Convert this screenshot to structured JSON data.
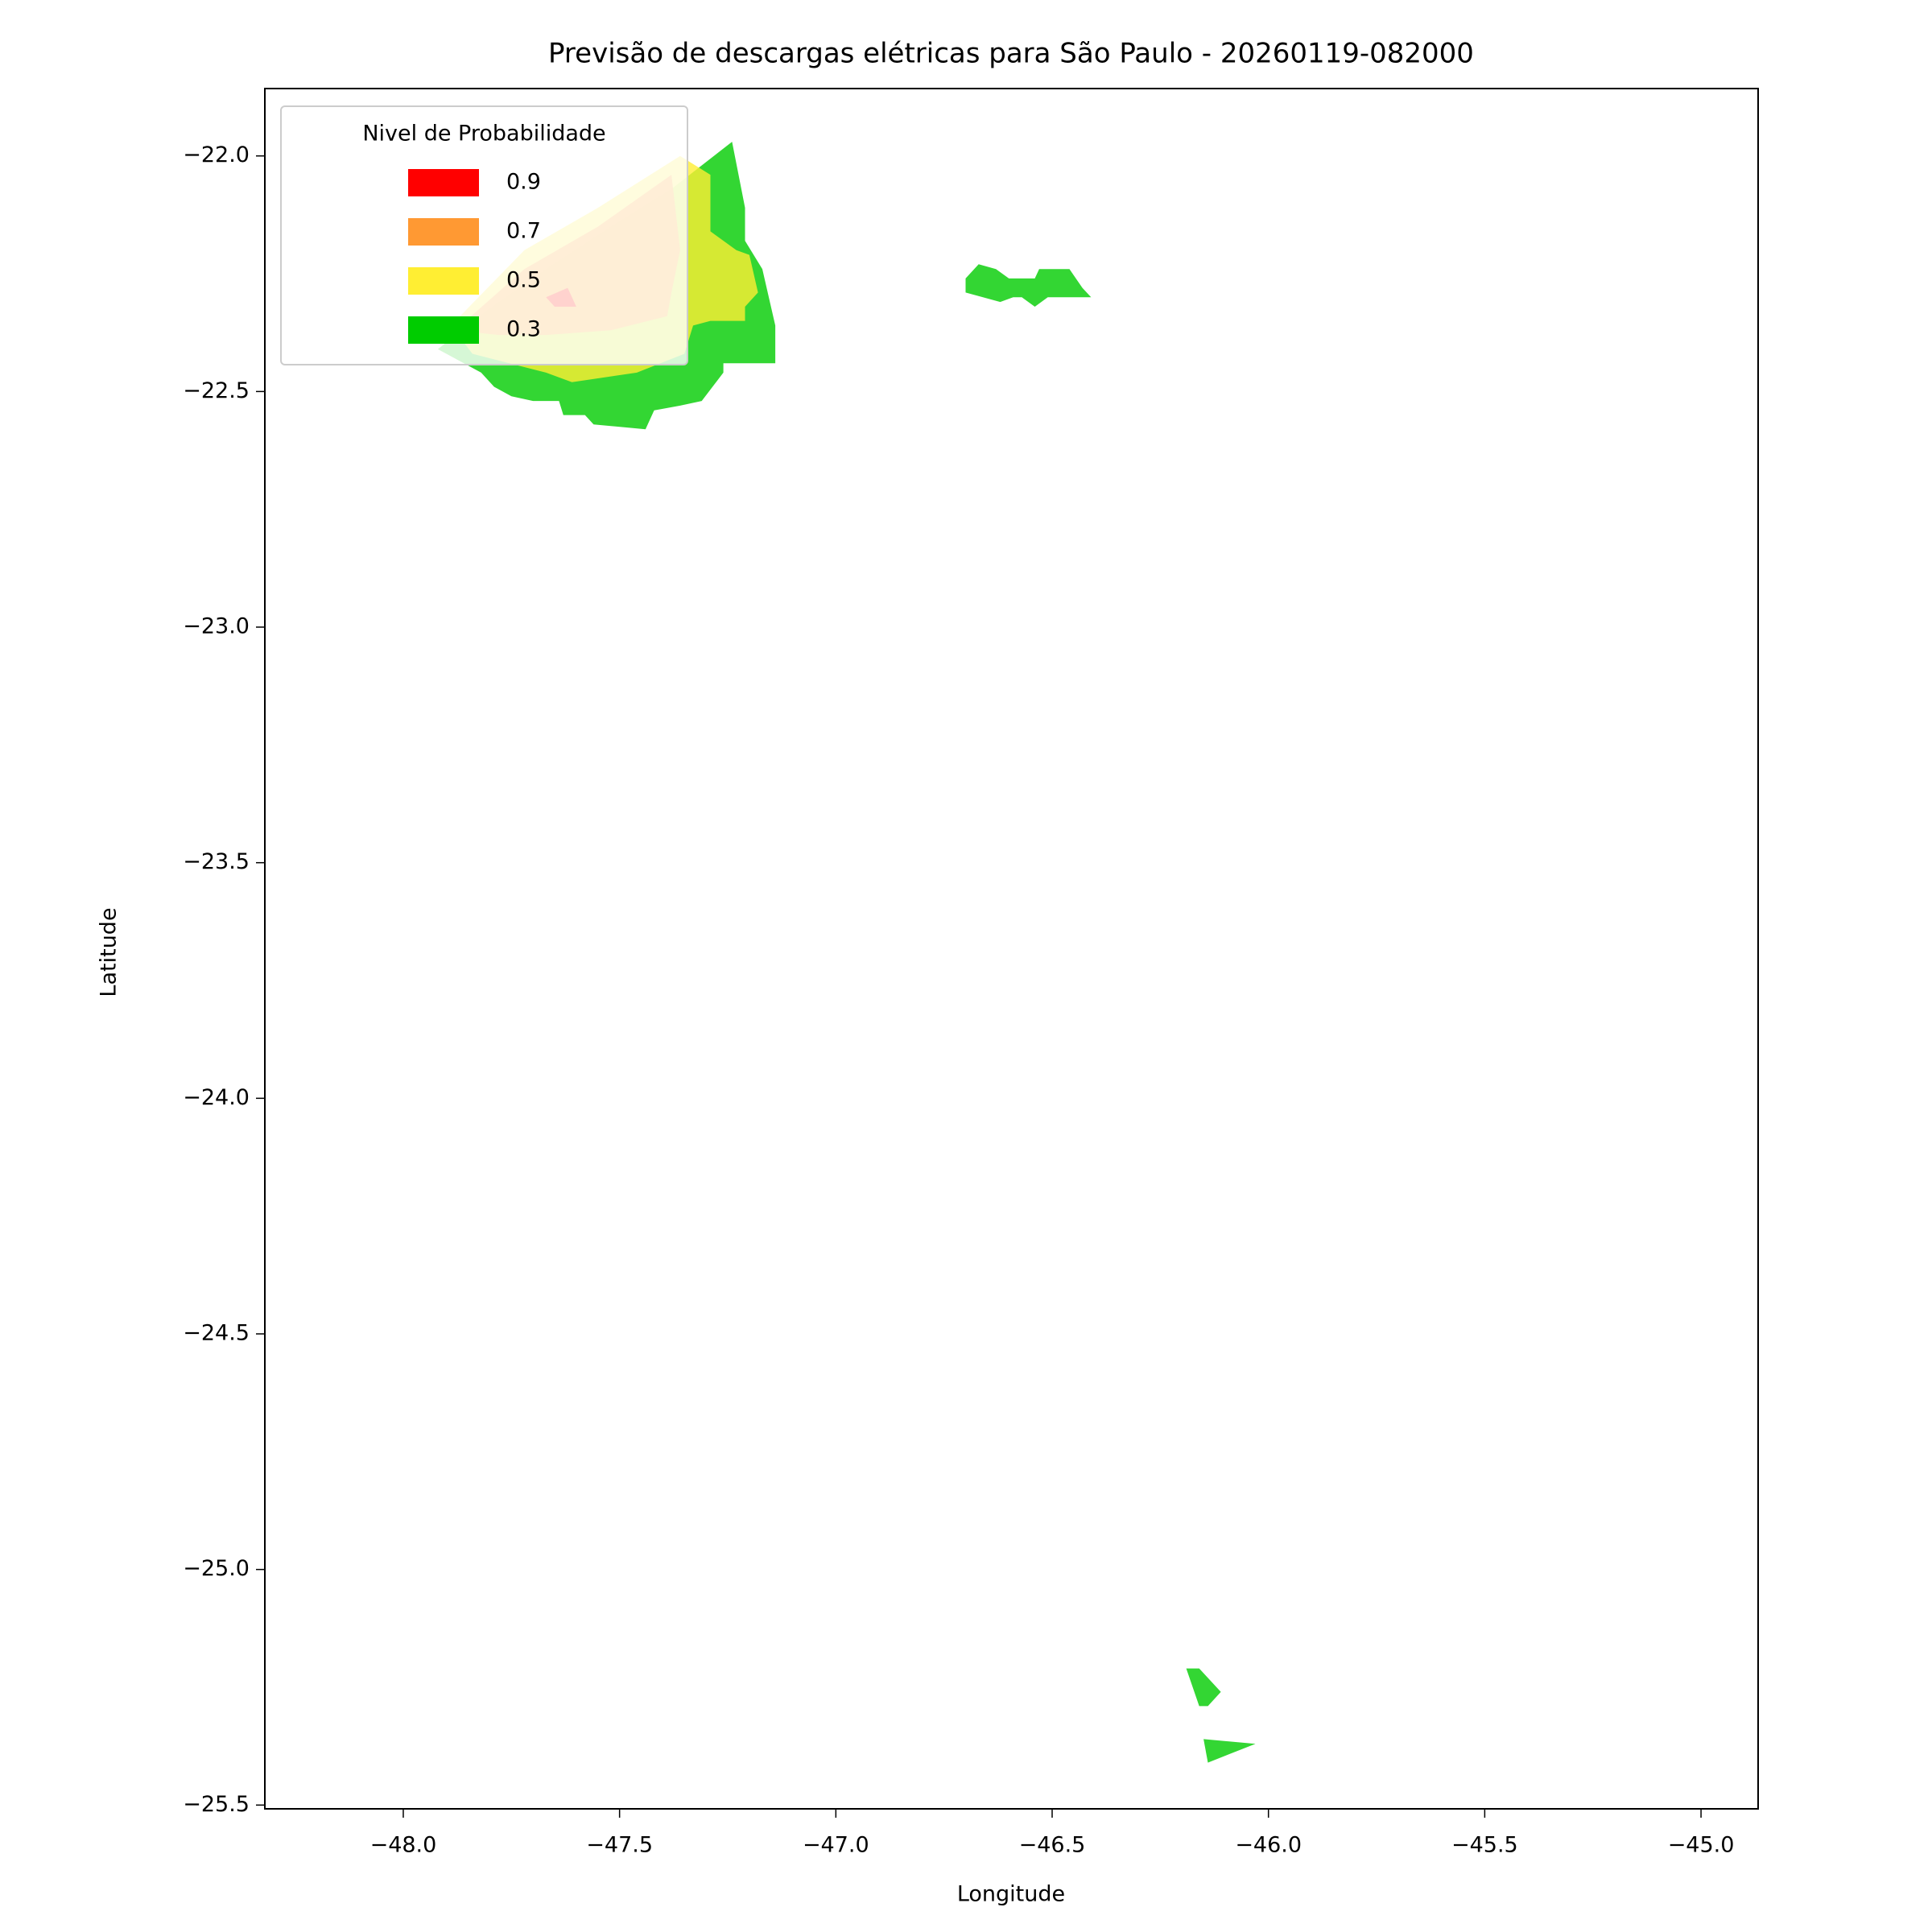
{
  "chart_data": {
    "type": "contour-map",
    "title": "Previsão de descargas elétricas para São Paulo - 20260119-082000",
    "x_label": "Longitude",
    "y_label": "Latitude",
    "xlim": [
      -48.32,
      -44.868
    ],
    "ylim": [
      -25.508,
      -21.857
    ],
    "xticks": [
      {
        "value": -48.0,
        "label": "−48.0"
      },
      {
        "value": -47.5,
        "label": "−47.5"
      },
      {
        "value": -47.0,
        "label": "−47.0"
      },
      {
        "value": -46.5,
        "label": "−46.5"
      },
      {
        "value": -46.0,
        "label": "−46.0"
      },
      {
        "value": -45.5,
        "label": "−45.5"
      },
      {
        "value": -45.0,
        "label": "−45.0"
      }
    ],
    "yticks": [
      {
        "value": -22.0,
        "label": "−22.0"
      },
      {
        "value": -22.5,
        "label": "−22.5"
      },
      {
        "value": -23.0,
        "label": "−23.0"
      },
      {
        "value": -23.5,
        "label": "−23.5"
      },
      {
        "value": -24.0,
        "label": "−24.0"
      },
      {
        "value": -24.5,
        "label": "−24.5"
      },
      {
        "value": -25.0,
        "label": "−25.0"
      },
      {
        "value": -25.5,
        "label": "−25.5"
      }
    ],
    "legend_title": "Nivel de Probabilidade",
    "legend": "upper left",
    "alpha": 0.8,
    "series": [
      {
        "name": "0.9",
        "color": "#ff0000",
        "polygons": [
          [
            [
              -47.67,
              -22.3
            ],
            [
              -47.62,
              -22.28
            ],
            [
              -47.6,
              -22.32
            ],
            [
              -47.65,
              -22.32
            ]
          ]
        ]
      },
      {
        "name": "0.7",
        "color": "#ff9933",
        "polygons": [
          [
            [
              -47.88,
              -22.37
            ],
            [
              -47.72,
              -22.24
            ],
            [
              -47.55,
              -22.15
            ],
            [
              -47.38,
              -22.04
            ],
            [
              -47.36,
              -22.2
            ],
            [
              -47.38,
              -22.29
            ],
            [
              -47.39,
              -22.34
            ],
            [
              -47.52,
              -22.37
            ],
            [
              -47.67,
              -22.38
            ],
            [
              -47.78,
              -22.38
            ]
          ]
        ]
      },
      {
        "name": "0.5",
        "color": "#ffee33",
        "polygons": [
          [
            [
              -47.84,
              -22.42
            ],
            [
              -47.67,
              -22.46
            ],
            [
              -47.61,
              -22.48
            ],
            [
              -47.46,
              -22.46
            ],
            [
              -47.35,
              -22.42
            ],
            [
              -47.33,
              -22.36
            ],
            [
              -47.29,
              -22.35
            ],
            [
              -47.21,
              -22.35
            ],
            [
              -47.21,
              -22.32
            ],
            [
              -47.18,
              -22.29
            ],
            [
              -47.2,
              -22.21
            ],
            [
              -47.23,
              -22.2
            ],
            [
              -47.29,
              -22.16
            ],
            [
              -47.29,
              -22.04
            ],
            [
              -47.36,
              -22.0
            ],
            [
              -47.55,
              -22.11
            ],
            [
              -47.72,
              -22.2
            ],
            [
              -47.89,
              -22.36
            ]
          ]
        ]
      },
      {
        "name": "0.3",
        "color": "#00cc00",
        "polygons": [
          [
            [
              -47.92,
              -22.41
            ],
            [
              -47.81,
              -22.33
            ],
            [
              -47.67,
              -22.24
            ],
            [
              -47.52,
              -22.15
            ],
            [
              -47.38,
              -22.07
            ],
            [
              -47.24,
              -21.97
            ],
            [
              -47.21,
              -22.11
            ],
            [
              -47.21,
              -22.18
            ],
            [
              -47.17,
              -22.24
            ],
            [
              -47.14,
              -22.36
            ],
            [
              -47.14,
              -22.44
            ],
            [
              -47.26,
              -22.44
            ],
            [
              -47.26,
              -22.46
            ],
            [
              -47.31,
              -22.52
            ],
            [
              -47.36,
              -22.53
            ],
            [
              -47.42,
              -22.54
            ],
            [
              -47.44,
              -22.58
            ],
            [
              -47.56,
              -22.57
            ],
            [
              -47.58,
              -22.55
            ],
            [
              -47.63,
              -22.55
            ],
            [
              -47.64,
              -22.52
            ],
            [
              -47.7,
              -22.52
            ],
            [
              -47.75,
              -22.51
            ],
            [
              -47.79,
              -22.49
            ],
            [
              -47.82,
              -22.46
            ]
          ],
          [
            [
              -46.7,
              -22.26
            ],
            [
              -46.67,
              -22.23
            ],
            [
              -46.63,
              -22.24
            ],
            [
              -46.6,
              -22.26
            ],
            [
              -46.54,
              -22.26
            ],
            [
              -46.53,
              -22.24
            ],
            [
              -46.46,
              -22.24
            ],
            [
              -46.43,
              -22.28
            ],
            [
              -46.41,
              -22.3
            ],
            [
              -46.51,
              -22.3
            ],
            [
              -46.54,
              -22.32
            ],
            [
              -46.57,
              -22.3
            ],
            [
              -46.59,
              -22.3
            ],
            [
              -46.62,
              -22.31
            ],
            [
              -46.66,
              -22.3
            ],
            [
              -46.7,
              -22.29
            ]
          ],
          [
            [
              -46.19,
              -25.21
            ],
            [
              -46.16,
              -25.21
            ],
            [
              -46.11,
              -25.26
            ],
            [
              -46.14,
              -25.29
            ],
            [
              -46.16,
              -25.29
            ]
          ],
          [
            [
              -46.15,
              -25.36
            ],
            [
              -46.03,
              -25.37
            ],
            [
              -46.14,
              -25.41
            ]
          ]
        ]
      }
    ]
  }
}
